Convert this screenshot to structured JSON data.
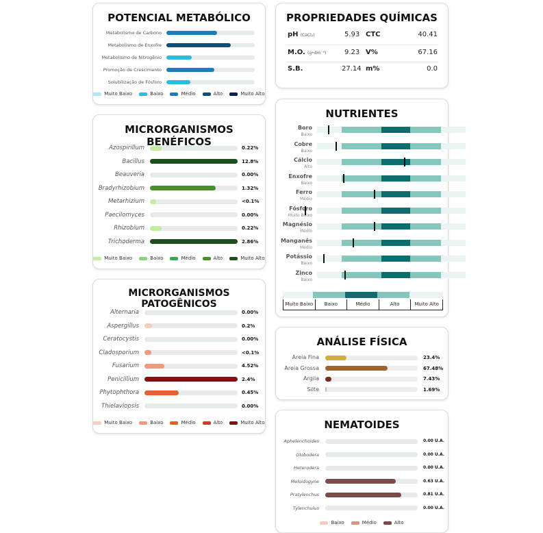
{
  "metab": {
    "title": "POTENCIAL METABÓLICO",
    "rows": [
      {
        "label": "Metabolismo de Carbono",
        "pct": 0.57,
        "color": "#1a7fb8"
      },
      {
        "label": "Metabolismo de Enxofre",
        "pct": 0.73,
        "color": "#0d4f7a"
      },
      {
        "label": "Metabolismo de Nitrogênio",
        "pct": 0.29,
        "color": "#2bbde0"
      },
      {
        "label": "Promoção de Crescimento",
        "pct": 0.54,
        "color": "#1a7fb8"
      },
      {
        "label": "Solubilização de Fósforo",
        "pct": 0.27,
        "color": "#2bbde0"
      }
    ],
    "legend": [
      {
        "label": "Muito Baixo",
        "color": "#b3e5f5"
      },
      {
        "label": "Baixo",
        "color": "#2bbde0"
      },
      {
        "label": "Médio",
        "color": "#1a7fb8"
      },
      {
        "label": "Alto",
        "color": "#0d4f7a"
      },
      {
        "label": "Muito Alto",
        "color": "#0a1f55"
      }
    ]
  },
  "benef": {
    "title": "MICRORGANISMOS BENÉFICOS",
    "rows": [
      {
        "label": "Azospirillum",
        "value": "0.22%",
        "pct": 0.13,
        "color": "#c4eba0"
      },
      {
        "label": "Bacillus",
        "value": "12.8%",
        "pct": 1.0,
        "color": "#1e4d1e"
      },
      {
        "label": "Beauveria",
        "value": "0.00%",
        "pct": 0,
        "color": "#c4eba0"
      },
      {
        "label": "Bradyrhizobium",
        "value": "1.32%",
        "pct": 0.75,
        "color": "#4a8f2a"
      },
      {
        "label": "Metarhizium",
        "value": "<0.1%",
        "pct": 0.07,
        "color": "#c4eba0"
      },
      {
        "label": "Paecilomyces",
        "value": "0.00%",
        "pct": 0,
        "color": "#c4eba0"
      },
      {
        "label": "Rhizobium",
        "value": "0.22%",
        "pct": 0.13,
        "color": "#c4eba0"
      },
      {
        "label": "Trichoderma",
        "value": "2.86%",
        "pct": 1.0,
        "color": "#1e4d1e"
      }
    ],
    "legend": [
      {
        "label": "Muito Baixo",
        "color": "#c4eba0"
      },
      {
        "label": "Baixo",
        "color": "#8fd17a"
      },
      {
        "label": "Médio",
        "color": "#3aa65a"
      },
      {
        "label": "Alto",
        "color": "#4a8f2a"
      },
      {
        "label": "Muito Alto",
        "color": "#1e4d1e"
      }
    ]
  },
  "patog": {
    "title": "MICRORGANISMOS PATOGÊNICOS",
    "rows": [
      {
        "label": "Alternaria",
        "value": "0.00%",
        "pct": 0,
        "color": "#f5cfc0"
      },
      {
        "label": "Aspergillus",
        "value": "0.2%",
        "pct": 0.08,
        "color": "#f5cfc0"
      },
      {
        "label": "Ceratocystis",
        "value": "0.00%",
        "pct": 0,
        "color": "#f5cfc0"
      },
      {
        "label": "Cladosporium",
        "value": "<0.1%",
        "pct": 0.07,
        "color": "#ef9a80"
      },
      {
        "label": "Fusarium",
        "value": "4.52%",
        "pct": 0.21,
        "color": "#ef9a80"
      },
      {
        "label": "Penicillium",
        "value": "2.4%",
        "pct": 1.0,
        "color": "#7a1515"
      },
      {
        "label": "Phytophthora",
        "value": "0.45%",
        "pct": 0.37,
        "color": "#e0622f"
      },
      {
        "label": "Thielaviopsis",
        "value": "0.00%",
        "pct": 0,
        "color": "#f5cfc0"
      }
    ],
    "legend": [
      {
        "label": "Muito Baixo",
        "color": "#f5cfc0"
      },
      {
        "label": "Baixo",
        "color": "#ef9a80"
      },
      {
        "label": "Médio",
        "color": "#e0622f"
      },
      {
        "label": "Alto",
        "color": "#d03a2a"
      },
      {
        "label": "Muito Alto",
        "color": "#7a1515"
      }
    ]
  },
  "quim": {
    "title": "PROPRIEDADES QUÍMICAS",
    "ph_label": "pH",
    "ph_unit": "(CaCl₂)",
    "ph_value": "5.93",
    "ctc_label": "CTC",
    "ctc_value": "40.41",
    "mo_label": "M.O.",
    "mo_unit": "(g•dm⁻³)",
    "mo_value": "9.23",
    "v_label": "V%",
    "v_value": "67.16",
    "sb_label": "S.B.",
    "sb_value": "27.14",
    "m_label": "m%",
    "m_value": "0.0"
  },
  "nutri": {
    "title": "NUTRIENTES",
    "rows": [
      {
        "name": "Boro",
        "level": "Baixo",
        "marker": 0.09
      },
      {
        "name": "Cobre",
        "level": "Baixo",
        "marker": 0.15
      },
      {
        "name": "Cálcio",
        "level": "Alto",
        "marker": 0.7
      },
      {
        "name": "Enxofre",
        "level": "Baixo",
        "marker": 0.21
      },
      {
        "name": "Ferro",
        "level": "Médio",
        "marker": 0.46
      },
      {
        "name": "Fósforo",
        "level": "Muito Baixo",
        "marker": -0.1
      },
      {
        "name": "Magnésio",
        "level": "Médio",
        "marker": 0.46
      },
      {
        "name": "Manganês",
        "level": "Médio",
        "marker": 0.29
      },
      {
        "name": "Potássio",
        "level": "Baixo",
        "marker": 0.05
      },
      {
        "name": "Zinco",
        "level": "Baixo",
        "marker": 0.22
      }
    ],
    "scale": [
      "Muito Baixo",
      "Baixo",
      "Médio",
      "Alto",
      "Muito Alto"
    ],
    "colors": {
      "light": "#eaf5f3",
      "mid": "#86c7bd",
      "dark": "#0e6b6e"
    }
  },
  "fisica": {
    "title": "ANÁLISE FÍSICA",
    "rows": [
      {
        "label": "Areia Fina",
        "value": "23.4%",
        "pct": 0.23,
        "color": "#d4ae3c"
      },
      {
        "label": "Areia Grossa",
        "value": "67.48%",
        "pct": 0.675,
        "color": "#a0622e"
      },
      {
        "label": "Argila",
        "value": "7.43%",
        "pct": 0.07,
        "color": "#7a2a1e"
      },
      {
        "label": "Silte",
        "value": "1.69%",
        "pct": 0.017,
        "color": "#bfbfbf"
      }
    ]
  },
  "nema": {
    "title": "NEMATOIDES",
    "rows": [
      {
        "label": "Aphelenchoides",
        "value": "0.00 U.A.",
        "pct": 0,
        "color": "#7d4a4a"
      },
      {
        "label": "Globodera",
        "value": "0.00 U.A.",
        "pct": 0,
        "color": "#7d4a4a"
      },
      {
        "label": "Heterodera",
        "value": "0.00 U.A.",
        "pct": 0,
        "color": "#7d4a4a"
      },
      {
        "label": "Meloidogyne",
        "value": "0.63 U.A.",
        "pct": 0.76,
        "color": "#7d4a4a"
      },
      {
        "label": "Pratylenchus",
        "value": "0.81 U.A.",
        "pct": 0.82,
        "color": "#7d4a4a"
      },
      {
        "label": "Tylenchulus",
        "value": "0.00 U.A.",
        "pct": 0,
        "color": "#7d4a4a"
      }
    ],
    "legend": [
      {
        "label": "Baixo",
        "color": "#f5cdbf"
      },
      {
        "label": "Médio",
        "color": "#d6948a"
      },
      {
        "label": "Alto",
        "color": "#7d4a4a"
      }
    ]
  }
}
